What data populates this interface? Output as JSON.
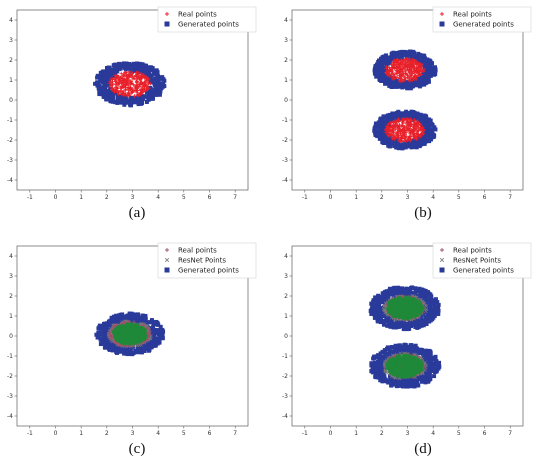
{
  "chart_data": [
    {
      "type": "scatter",
      "caption": "(a)",
      "xlim": [
        -1.5,
        7.5
      ],
      "ylim": [
        -4.5,
        4.5
      ],
      "xticks": [
        "-1",
        "0",
        "1",
        "2",
        "3",
        "4",
        "5",
        "6",
        "7"
      ],
      "yticks": [
        "4",
        "3",
        "2",
        "1",
        "0",
        "-1",
        "-2",
        "-3",
        "-4"
      ],
      "legend": "top-right",
      "series": [
        {
          "name": "Real points",
          "marker": "plus",
          "color": "#e8202a",
          "clusters": [
            {
              "cx": 2.9,
              "cy": 0.8,
              "r": 0.8
            }
          ]
        },
        {
          "name": "Generated points",
          "marker": "square",
          "color": "#2a3a9a",
          "clusters": [
            {
              "cx": 2.9,
              "cy": 0.8,
              "r": 1.3
            }
          ]
        }
      ]
    },
    {
      "type": "scatter",
      "caption": "(b)",
      "xlim": [
        -1.5,
        7.5
      ],
      "ylim": [
        -4.5,
        4.5
      ],
      "xticks": [
        "-1",
        "0",
        "1",
        "2",
        "3",
        "4",
        "5",
        "6",
        "7"
      ],
      "yticks": [
        "4",
        "3",
        "2",
        "1",
        "0",
        "-1",
        "-2",
        "-3",
        "-4"
      ],
      "legend": "top-right",
      "series": [
        {
          "name": "Real points",
          "marker": "plus",
          "color": "#e8202a",
          "clusters": [
            {
              "cx": 2.9,
              "cy": 1.5,
              "r": 0.75
            },
            {
              "cx": 2.9,
              "cy": -1.5,
              "r": 0.75
            }
          ]
        },
        {
          "name": "Generated points",
          "marker": "square",
          "color": "#2a3a9a",
          "clusters": [
            {
              "cx": 2.9,
              "cy": 1.5,
              "r": 1.15
            },
            {
              "cx": 2.9,
              "cy": -1.5,
              "r": 1.15
            }
          ]
        }
      ]
    },
    {
      "type": "scatter",
      "caption": "(c)",
      "xlim": [
        -1.5,
        7.5
      ],
      "ylim": [
        -4.5,
        4.5
      ],
      "xticks": [
        "-1",
        "0",
        "1",
        "2",
        "3",
        "4",
        "5",
        "6",
        "7"
      ],
      "yticks": [
        "4",
        "3",
        "2",
        "1",
        "0",
        "-1",
        "-2",
        "-3",
        "-4"
      ],
      "legend": "top-right",
      "series": [
        {
          "name": "Real points",
          "marker": "plus",
          "color": "#a0526a",
          "clusters": [
            {
              "cx": 2.9,
              "cy": 0.1,
              "r": 0.8
            }
          ]
        },
        {
          "name": "ResNet Points",
          "marker": "x",
          "color": "#7a7a7a",
          "clusters": [
            {
              "cx": 2.9,
              "cy": 0.1,
              "r": 0.85
            }
          ]
        },
        {
          "name": "Generated points",
          "marker": "square",
          "color": "#2a3a9a",
          "clusters": [
            {
              "cx": 2.9,
              "cy": 0.1,
              "r": 1.25
            }
          ]
        },
        {
          "name": "",
          "marker": "dot",
          "color": "#1e8a3a",
          "clusters": [
            {
              "cx": 2.9,
              "cy": 0.1,
              "r": 0.65
            }
          ]
        }
      ]
    },
    {
      "type": "scatter",
      "caption": "(d)",
      "xlim": [
        -1.5,
        7.5
      ],
      "ylim": [
        -4.5,
        4.5
      ],
      "xticks": [
        "-1",
        "0",
        "1",
        "2",
        "3",
        "4",
        "5",
        "6",
        "7"
      ],
      "yticks": [
        "4",
        "3",
        "2",
        "1",
        "0",
        "-1",
        "-2",
        "-3",
        "-4"
      ],
      "legend": "top-right",
      "series": [
        {
          "name": "Real points",
          "marker": "plus",
          "color": "#a0526a",
          "clusters": [
            {
              "cx": 2.9,
              "cy": 1.4,
              "r": 0.75
            },
            {
              "cx": 2.9,
              "cy": -1.5,
              "r": 0.75
            }
          ]
        },
        {
          "name": "ResNet Points",
          "marker": "x",
          "color": "#7a7a7a",
          "clusters": [
            {
              "cx": 2.9,
              "cy": 1.4,
              "r": 0.85
            },
            {
              "cx": 2.9,
              "cy": -1.5,
              "r": 0.85
            }
          ]
        },
        {
          "name": "Generated points",
          "marker": "square",
          "color": "#2a3a9a",
          "clusters": [
            {
              "cx": 2.9,
              "cy": 1.4,
              "r": 1.3
            },
            {
              "cx": 2.9,
              "cy": -1.5,
              "r": 1.3
            }
          ]
        },
        {
          "name": "",
          "marker": "dot",
          "color": "#1e8a3a",
          "clusters": [
            {
              "cx": 2.9,
              "cy": 1.4,
              "r": 0.7
            },
            {
              "cx": 2.9,
              "cy": -1.5,
              "r": 0.7
            }
          ]
        }
      ]
    }
  ]
}
